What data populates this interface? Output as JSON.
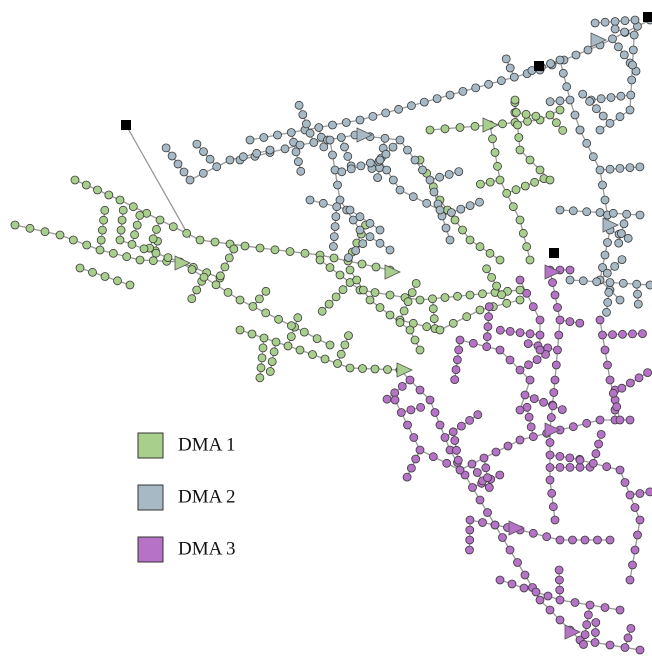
{
  "legend": [
    {
      "label": "DMA 1",
      "color": "#a9cf8c"
    },
    {
      "label": "DMA 2",
      "color": "#a6b9c4"
    },
    {
      "label": "DMA 3",
      "color": "#b572c6"
    }
  ]
}
